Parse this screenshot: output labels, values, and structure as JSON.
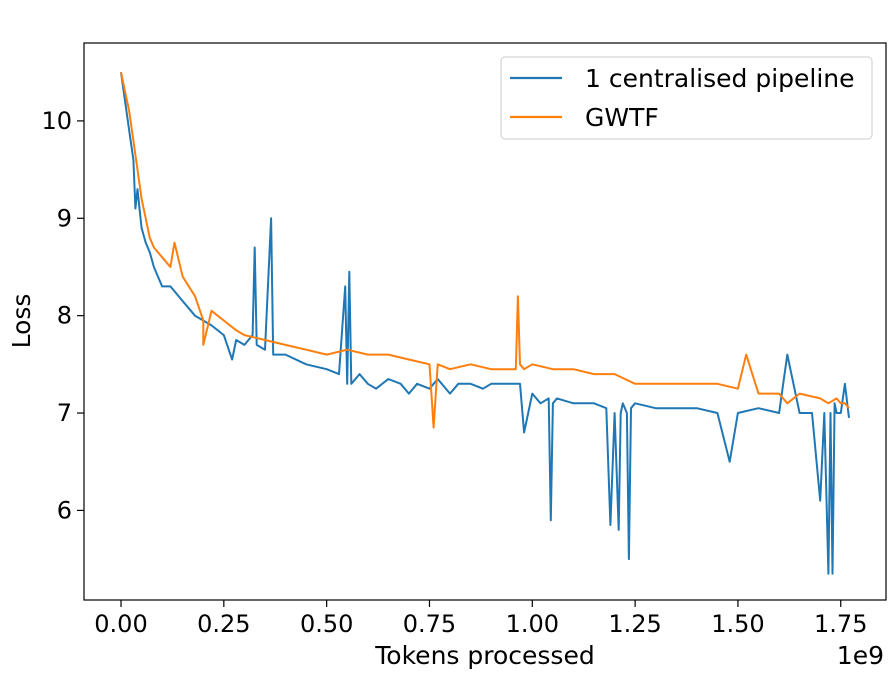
{
  "chart_data": {
    "type": "line",
    "title": "",
    "xlabel": "Tokens processed",
    "ylabel": "Loss",
    "x_offset_text": "1e9",
    "xlim": [
      -0.09,
      1.86
    ],
    "ylim": [
      5.08,
      10.8
    ],
    "x_ticks": [
      0.0,
      0.25,
      0.5,
      0.75,
      1.0,
      1.25,
      1.5,
      1.75
    ],
    "x_tick_labels": [
      "0.00",
      "0.25",
      "0.50",
      "0.75",
      "1.00",
      "1.25",
      "1.50",
      "1.75"
    ],
    "y_ticks": [
      6,
      7,
      8,
      9,
      10
    ],
    "y_tick_labels": [
      "6",
      "7",
      "8",
      "9",
      "10"
    ],
    "grid": false,
    "legend_position": "upper-right",
    "series": [
      {
        "name": "1 centralised pipeline",
        "color": "#1f77b4",
        "x": [
          0.0,
          0.02,
          0.03,
          0.035,
          0.04,
          0.045,
          0.05,
          0.06,
          0.07,
          0.08,
          0.1,
          0.12,
          0.15,
          0.18,
          0.2,
          0.22,
          0.25,
          0.27,
          0.28,
          0.3,
          0.32,
          0.325,
          0.33,
          0.35,
          0.365,
          0.37,
          0.4,
          0.45,
          0.5,
          0.53,
          0.545,
          0.55,
          0.555,
          0.56,
          0.58,
          0.6,
          0.62,
          0.65,
          0.68,
          0.7,
          0.72,
          0.75,
          0.77,
          0.8,
          0.82,
          0.85,
          0.88,
          0.9,
          0.93,
          0.95,
          0.97,
          0.98,
          1.0,
          1.02,
          1.04,
          1.045,
          1.05,
          1.06,
          1.1,
          1.15,
          1.18,
          1.19,
          1.2,
          1.21,
          1.215,
          1.22,
          1.23,
          1.235,
          1.24,
          1.25,
          1.3,
          1.35,
          1.4,
          1.45,
          1.48,
          1.5,
          1.55,
          1.6,
          1.62,
          1.65,
          1.68,
          1.7,
          1.71,
          1.72,
          1.725,
          1.73,
          1.735,
          1.74,
          1.75,
          1.76,
          1.77
        ],
        "y": [
          10.5,
          9.9,
          9.6,
          9.1,
          9.3,
          9.1,
          8.9,
          8.75,
          8.65,
          8.5,
          8.3,
          8.3,
          8.15,
          8.0,
          7.95,
          7.9,
          7.8,
          7.55,
          7.75,
          7.7,
          7.8,
          8.7,
          7.7,
          7.65,
          9.0,
          7.6,
          7.6,
          7.5,
          7.45,
          7.4,
          8.3,
          7.3,
          8.45,
          7.3,
          7.4,
          7.3,
          7.25,
          7.35,
          7.3,
          7.2,
          7.3,
          7.25,
          7.35,
          7.2,
          7.3,
          7.3,
          7.25,
          7.3,
          7.3,
          7.3,
          7.3,
          6.8,
          7.2,
          7.1,
          7.15,
          5.9,
          7.1,
          7.15,
          7.1,
          7.1,
          7.05,
          5.85,
          7.0,
          5.8,
          7.0,
          7.1,
          7.0,
          5.5,
          7.05,
          7.1,
          7.05,
          7.05,
          7.05,
          7.0,
          6.5,
          7.0,
          7.05,
          7.0,
          7.6,
          7.0,
          7.0,
          6.1,
          7.0,
          5.35,
          7.0,
          5.35,
          7.1,
          7.0,
          7.0,
          7.3,
          6.95
        ]
      },
      {
        "name": "GWTF",
        "color": "#ff7f0e",
        "x": [
          0.0,
          0.02,
          0.04,
          0.05,
          0.06,
          0.07,
          0.08,
          0.1,
          0.12,
          0.13,
          0.15,
          0.18,
          0.2,
          0.2,
          0.22,
          0.25,
          0.28,
          0.3,
          0.35,
          0.4,
          0.45,
          0.5,
          0.55,
          0.6,
          0.65,
          0.7,
          0.75,
          0.76,
          0.77,
          0.8,
          0.85,
          0.9,
          0.95,
          0.96,
          0.965,
          0.97,
          0.98,
          1.0,
          1.05,
          1.1,
          1.15,
          1.2,
          1.25,
          1.3,
          1.35,
          1.4,
          1.45,
          1.5,
          1.52,
          1.55,
          1.6,
          1.62,
          1.65,
          1.7,
          1.72,
          1.74,
          1.75,
          1.76,
          1.77
        ],
        "y": [
          10.5,
          10.1,
          9.5,
          9.2,
          9.0,
          8.8,
          8.7,
          8.6,
          8.5,
          8.75,
          8.4,
          8.2,
          7.95,
          7.7,
          8.05,
          7.95,
          7.85,
          7.8,
          7.75,
          7.7,
          7.65,
          7.6,
          7.65,
          7.6,
          7.6,
          7.55,
          7.5,
          6.85,
          7.5,
          7.45,
          7.5,
          7.45,
          7.45,
          7.45,
          8.2,
          7.5,
          7.45,
          7.5,
          7.45,
          7.45,
          7.4,
          7.4,
          7.3,
          7.3,
          7.3,
          7.3,
          7.3,
          7.25,
          7.6,
          7.2,
          7.2,
          7.1,
          7.2,
          7.15,
          7.1,
          7.15,
          7.1,
          7.1,
          7.05
        ]
      }
    ]
  }
}
